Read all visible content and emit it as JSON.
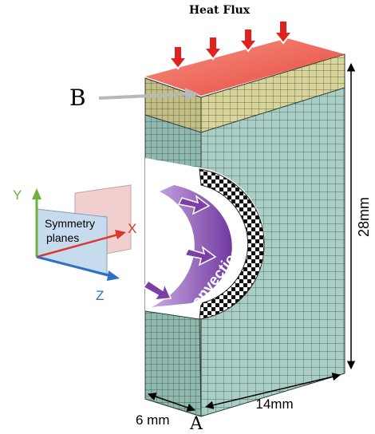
{
  "labels": {
    "heat_flux": "Heat Flux",
    "point_b": "B",
    "point_a": "A",
    "height": "28mm",
    "width": "14mm",
    "depth": "6 mm",
    "convection": "Convection",
    "symmetry_line1": "Symmetry",
    "symmetry_line2": "planes",
    "axis_y": "Y",
    "axis_x": "X",
    "axis_z": "Z"
  },
  "colors": {
    "heat_flux_arrow": "#e0211c",
    "heat_flux_plane": "#f25a4a",
    "top_layer": "#d8d59a",
    "body_mesh": "#a9cec5",
    "mesh_line": "#3d4e4a",
    "convection": "#7b3fa6",
    "axis_y": "#6fb13c",
    "axis_x": "#d93a2c",
    "axis_z": "#2f6fc4",
    "dimension_line": "#000000",
    "pointer_b": "#b8b8b8"
  },
  "icons": {
    "heat_flux_arrows": "down-arrow-icon",
    "convection_arrows": "right-arrow-icon"
  }
}
